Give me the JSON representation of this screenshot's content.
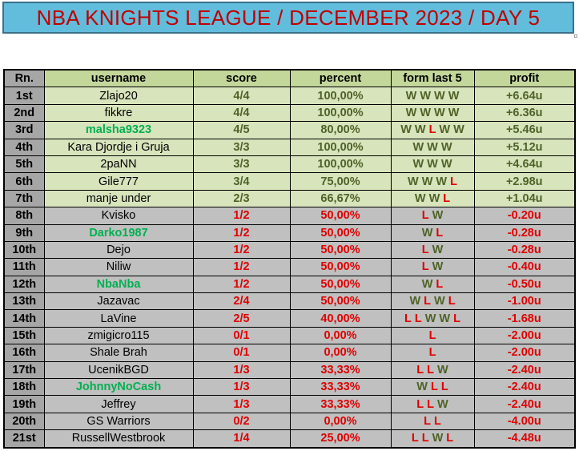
{
  "title": "NBA KNIGHTS LEAGUE / DECEMBER 2023 / DAY 5",
  "columns": {
    "rank": "Rn.",
    "username": "username",
    "score": "score",
    "percent": "percent",
    "form": "form last 5",
    "profit": "profit"
  },
  "colors": {
    "title_bg": "#62bcdc",
    "title_text": "#c00000",
    "header_bg": "#c4d79b",
    "positive_row_bg": "#d8e4bc",
    "negative_row_bg": "#c0c0c0",
    "rank_bg": "#a6a6a6",
    "win_text": "#4f6228",
    "loss_text": "#e00000",
    "highlight_username": "#00b050"
  },
  "rows": [
    {
      "rank": "1st",
      "username": "Zlajo20",
      "highlight": false,
      "score": "4/4",
      "percent": "100,00%",
      "form": [
        "W",
        "W",
        "W",
        "W"
      ],
      "profit": "+6.64u"
    },
    {
      "rank": "2nd",
      "username": "fikkre",
      "highlight": false,
      "score": "4/4",
      "percent": "100,00%",
      "form": [
        "W",
        "W",
        "W",
        "W"
      ],
      "profit": "+6.36u"
    },
    {
      "rank": "3rd",
      "username": "malsha9323",
      "highlight": true,
      "score": "4/5",
      "percent": "80,00%",
      "form": [
        "W",
        "W",
        "L",
        "W",
        "W"
      ],
      "profit": "+5.46u"
    },
    {
      "rank": "4th",
      "username": "Kara Djordje i Gruja",
      "highlight": false,
      "score": "3/3",
      "percent": "100,00%",
      "form": [
        "W",
        "W",
        "W"
      ],
      "profit": "+5.12u"
    },
    {
      "rank": "5th",
      "username": "2paNN",
      "highlight": false,
      "score": "3/3",
      "percent": "100,00%",
      "form": [
        "W",
        "W",
        "W"
      ],
      "profit": "+4.64u"
    },
    {
      "rank": "6th",
      "username": "Gile777",
      "highlight": false,
      "score": "3/4",
      "percent": "75,00%",
      "form": [
        "W",
        "W",
        "W",
        "L"
      ],
      "profit": "+2.98u"
    },
    {
      "rank": "7th",
      "username": "manje under",
      "highlight": false,
      "score": "2/3",
      "percent": "66,67%",
      "form": [
        "W",
        "W",
        "L"
      ],
      "profit": "+1.04u"
    },
    {
      "rank": "8th",
      "username": "Kvisko",
      "highlight": false,
      "score": "1/2",
      "percent": "50,00%",
      "form": [
        "L",
        "W"
      ],
      "profit": "-0.20u"
    },
    {
      "rank": "9th",
      "username": "Darko1987",
      "highlight": true,
      "score": "1/2",
      "percent": "50,00%",
      "form": [
        "W",
        "L"
      ],
      "profit": "-0.28u"
    },
    {
      "rank": "10th",
      "username": "Dejo",
      "highlight": false,
      "score": "1/2",
      "percent": "50,00%",
      "form": [
        "L",
        "W"
      ],
      "profit": "-0.28u"
    },
    {
      "rank": "11th",
      "username": "Niliw",
      "highlight": false,
      "score": "1/2",
      "percent": "50,00%",
      "form": [
        "L",
        "W"
      ],
      "profit": "-0.40u"
    },
    {
      "rank": "12th",
      "username": "NbaNba",
      "highlight": true,
      "score": "1/2",
      "percent": "50,00%",
      "form": [
        "W",
        "L"
      ],
      "profit": "-0.50u"
    },
    {
      "rank": "13th",
      "username": "Jazavac",
      "highlight": false,
      "score": "2/4",
      "percent": "50,00%",
      "form": [
        "W",
        "L",
        "W",
        "L"
      ],
      "profit": "-1.00u"
    },
    {
      "rank": "14th",
      "username": "LaVine",
      "highlight": false,
      "score": "2/5",
      "percent": "40,00%",
      "form": [
        "L",
        "L",
        "W",
        "W",
        "L"
      ],
      "profit": "-1.68u"
    },
    {
      "rank": "15th",
      "username": "zmigicro115",
      "highlight": false,
      "score": "0/1",
      "percent": "0,00%",
      "form": [
        "L"
      ],
      "profit": "-2.00u"
    },
    {
      "rank": "16th",
      "username": "Shale Brah",
      "highlight": false,
      "score": "0/1",
      "percent": "0,00%",
      "form": [
        "L"
      ],
      "profit": "-2.00u"
    },
    {
      "rank": "17th",
      "username": "UcenikBGD",
      "highlight": false,
      "score": "1/3",
      "percent": "33,33%",
      "form": [
        "L",
        "L",
        "W"
      ],
      "profit": "-2.40u"
    },
    {
      "rank": "18th",
      "username": "JohnnyNoCash",
      "highlight": true,
      "score": "1/3",
      "percent": "33,33%",
      "form": [
        "W",
        "L",
        "L"
      ],
      "profit": "-2.40u"
    },
    {
      "rank": "19th",
      "username": "Jeffrey",
      "highlight": false,
      "score": "1/3",
      "percent": "33,33%",
      "form": [
        "L",
        "L",
        "W"
      ],
      "profit": "-2.40u"
    },
    {
      "rank": "20th",
      "username": "GS Warriors",
      "highlight": false,
      "score": "0/2",
      "percent": "0,00%",
      "form": [
        "L",
        "L"
      ],
      "profit": "-4.00u"
    },
    {
      "rank": "21st",
      "username": "RussellWestbrook",
      "highlight": false,
      "score": "1/4",
      "percent": "25,00%",
      "form": [
        "L",
        "L",
        "W",
        "L"
      ],
      "profit": "-4.48u"
    }
  ]
}
